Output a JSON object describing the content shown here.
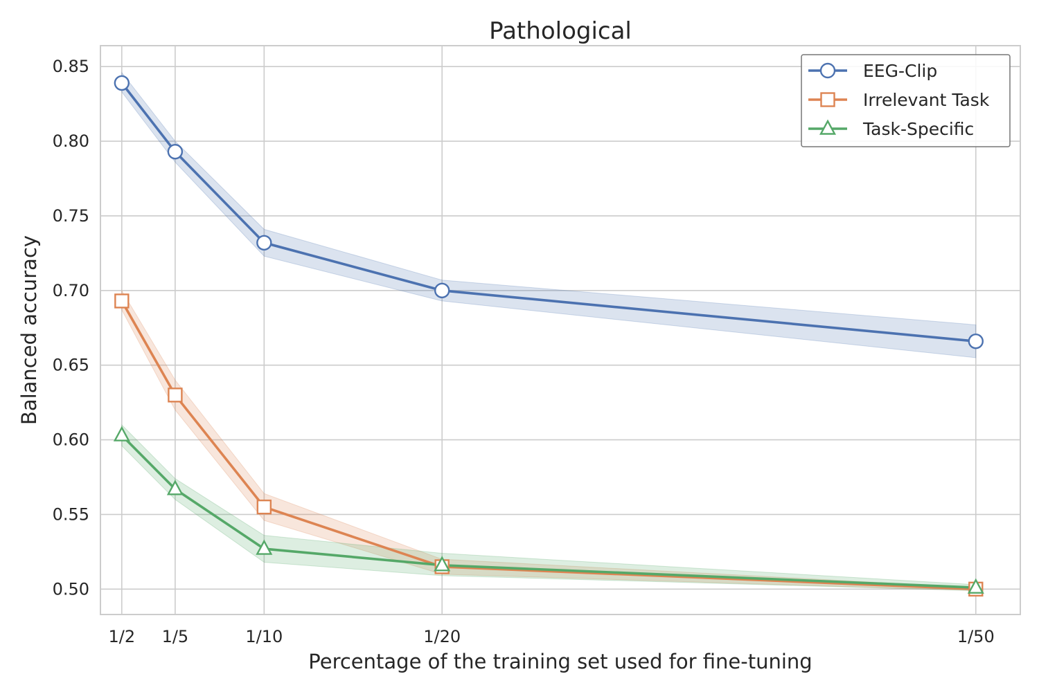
{
  "chart_data": {
    "type": "line",
    "title": "Pathological",
    "xlabel": "Percentage of the training set used for fine-tuning",
    "ylabel": "Balanced accuracy",
    "x_tick_labels": [
      "1/2",
      "1/5",
      "1/10",
      "1/20",
      "1/50"
    ],
    "x": [
      2,
      5,
      10,
      20,
      50
    ],
    "x_scale": "linear in denominator",
    "xlim": [
      0.8,
      52.5
    ],
    "ylim": [
      0.483,
      0.864
    ],
    "y_ticks": [
      0.5,
      0.55,
      0.6,
      0.65,
      0.7,
      0.75,
      0.8,
      0.85
    ],
    "y_tick_labels": [
      "0.50",
      "0.55",
      "0.60",
      "0.65",
      "0.70",
      "0.75",
      "0.80",
      "0.85"
    ],
    "grid": true,
    "legend_position": "top-right",
    "series": [
      {
        "name": "EEG-Clip",
        "color": "#4c72b0",
        "marker": "circle",
        "values": [
          0.839,
          0.793,
          0.732,
          0.7,
          0.666
        ],
        "lower": [
          0.833,
          0.786,
          0.723,
          0.693,
          0.655
        ],
        "upper": [
          0.846,
          0.8,
          0.741,
          0.707,
          0.677
        ]
      },
      {
        "name": "Irrelevant Task",
        "color": "#dd8452",
        "marker": "square",
        "values": [
          0.693,
          0.63,
          0.555,
          0.515,
          0.5
        ],
        "lower": [
          0.687,
          0.62,
          0.546,
          0.51,
          0.499
        ],
        "upper": [
          0.7,
          0.64,
          0.564,
          0.52,
          0.501
        ]
      },
      {
        "name": "Task-Specific",
        "color": "#55a868",
        "marker": "triangle",
        "values": [
          0.603,
          0.567,
          0.527,
          0.516,
          0.501
        ],
        "lower": [
          0.596,
          0.56,
          0.518,
          0.509,
          0.499
        ],
        "upper": [
          0.61,
          0.574,
          0.536,
          0.524,
          0.503
        ]
      }
    ]
  }
}
